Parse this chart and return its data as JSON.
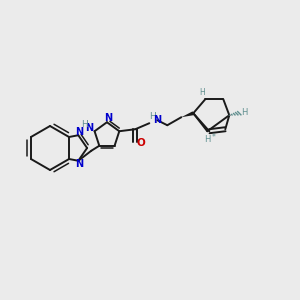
{
  "background_color": "#ebebeb",
  "bond_color": "#1a1a1a",
  "blue_color": "#0000cc",
  "red_color": "#cc0000",
  "teal_color": "#5f8f8f",
  "figsize": [
    3.0,
    3.0
  ],
  "dpi": 100,
  "xlim": [
    0,
    300
  ],
  "ylim": [
    0,
    300
  ]
}
